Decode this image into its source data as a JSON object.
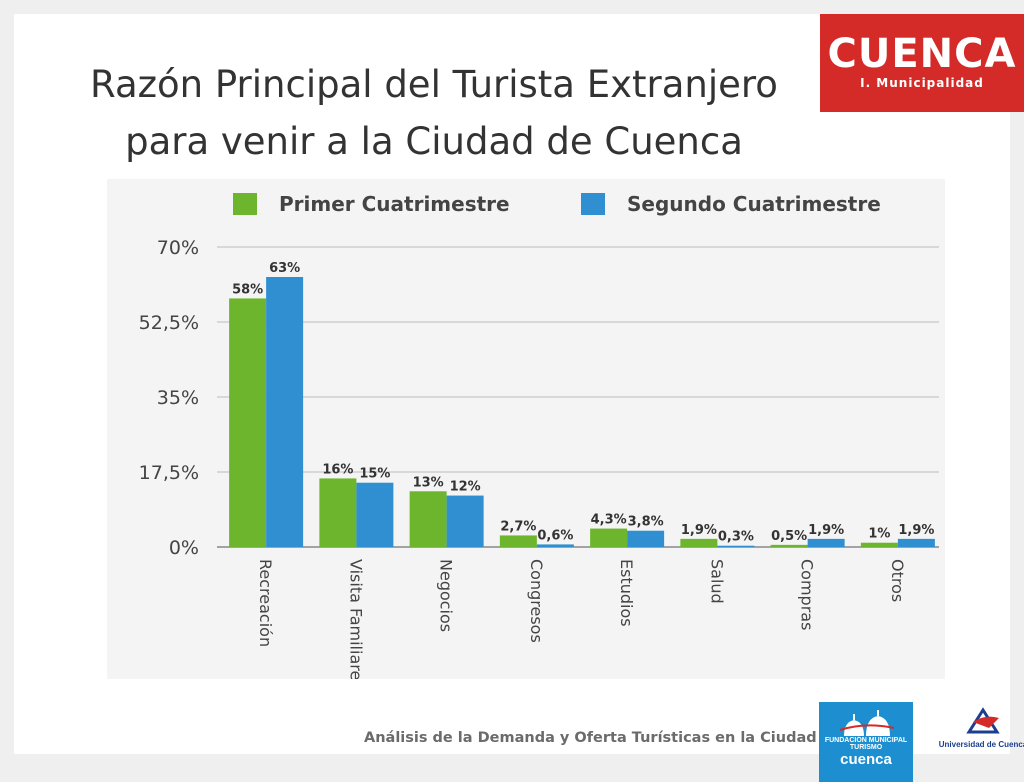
{
  "slide": {
    "title_line1": "Razón Principal del Turista Extranjero",
    "title_line2": "para venir a la Ciudad de Cuenca",
    "footer": "Análisis de la Demanda y Oferta Turísticas en la Ciudad de Cuenca"
  },
  "logos": {
    "cuenca_word": "CUENCA",
    "cuenca_sub": "I. Municipalidad",
    "turismo_small": "FUNDACIÓN MUNICIPAL",
    "turismo_mid": "TURISMO",
    "turismo_big": "cuenca",
    "university": "Universidad de Cuenca"
  },
  "colors": {
    "series1": "#6cb52d",
    "series2": "#2f8fd0",
    "logo_red": "#d42a28",
    "logo_blue": "#1d8fd0",
    "grid": "#bdbdbd",
    "text": "#444444"
  },
  "chart_data": {
    "type": "bar",
    "title": "",
    "xlabel": "",
    "ylabel": "",
    "ylim": [
      0,
      70
    ],
    "yticks": [
      0,
      17.5,
      35,
      52.5,
      70
    ],
    "ytick_labels": [
      "0%",
      "17,5%",
      "35%",
      "52,5%",
      "70%"
    ],
    "grid": true,
    "legend_position": "top",
    "categories": [
      "Recreación",
      "Visita Familiares",
      "Negocios",
      "Congresos",
      "Estudios",
      "Salud",
      "Compras",
      "Otros"
    ],
    "series": [
      {
        "name": "Primer Cuatrimestre",
        "values": [
          58,
          16,
          13,
          2.7,
          4.3,
          1.9,
          0.5,
          1
        ],
        "labels": [
          "58%",
          "16%",
          "13%",
          "2,7%",
          "4,3%",
          "1,9%",
          "0,5%",
          "1%"
        ]
      },
      {
        "name": "Segundo Cuatrimestre",
        "values": [
          63,
          15,
          12,
          0.6,
          3.8,
          0.3,
          1.9,
          1.9
        ],
        "labels": [
          "63%",
          "15%",
          "12%",
          "0,6%",
          "3,8%",
          "0,3%",
          "1,9%",
          "1,9%"
        ]
      }
    ]
  }
}
